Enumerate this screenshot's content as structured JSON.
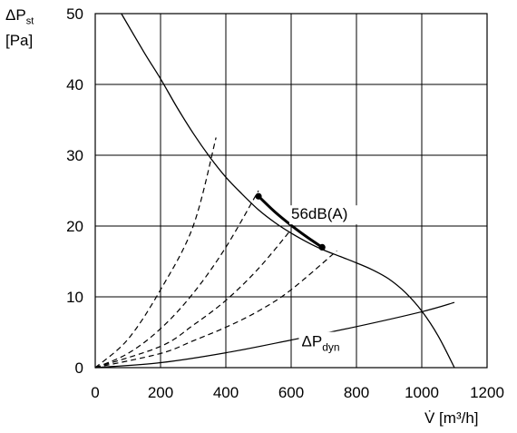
{
  "chart_data": {
    "type": "line",
    "ylabel_main": "ΔP",
    "ylabel_sub": "st",
    "yunit": "[Pa]",
    "xlabel": "V̇ [m³/h]",
    "xlim": [
      0,
      1200
    ],
    "ylim": [
      0,
      50
    ],
    "x_ticks": [
      0,
      200,
      400,
      600,
      800,
      1000,
      1200
    ],
    "y_ticks": [
      0,
      10,
      20,
      30,
      40,
      50
    ],
    "grid": true,
    "series": [
      {
        "style": "solid",
        "x": [
          80,
          150,
          200,
          250,
          300,
          350,
          400,
          450,
          500,
          550,
          600,
          650,
          700,
          750,
          800,
          850,
          900,
          950,
          1000,
          1050,
          1100
        ],
        "y": [
          50,
          44.5,
          40.8,
          36.8,
          33.1,
          29.8,
          26.9,
          24.5,
          22.3,
          20.5,
          19.0,
          17.7,
          16.6,
          15.7,
          14.8,
          13.8,
          12.5,
          10.6,
          8.0,
          4.5,
          0
        ]
      },
      {
        "name": "56dB(A)",
        "style": "bold",
        "x": [
          500,
          550,
          600,
          650,
          695
        ],
        "y": [
          24.2,
          22.0,
          20.1,
          18.4,
          17.0
        ]
      },
      {
        "name": "ΔPdyn",
        "style": "thin",
        "x": [
          0,
          200,
          400,
          600,
          800,
          1000,
          1100
        ],
        "y": [
          0,
          0.7,
          2.1,
          3.9,
          5.8,
          7.9,
          9.2
        ]
      },
      {
        "style": "dashed",
        "x": [
          0,
          100,
          200,
          300,
          370
        ],
        "y": [
          0,
          4,
          11,
          20,
          32.5
        ]
      },
      {
        "style": "dashed",
        "x": [
          0,
          100,
          200,
          300,
          400,
          500
        ],
        "y": [
          0,
          2,
          5.5,
          10.5,
          17,
          25
        ]
      },
      {
        "style": "dashed",
        "x": [
          0,
          200,
          300,
          400,
          500,
          600
        ],
        "y": [
          0,
          3,
          6,
          9.5,
          14,
          19.5
        ]
      },
      {
        "style": "dashed",
        "x": [
          0,
          200,
          300,
          400,
          500,
          600,
          740
        ],
        "y": [
          0,
          2,
          3.8,
          5.7,
          8,
          11,
          16.5
        ]
      }
    ],
    "points": [
      {
        "x": 500,
        "y": 24.2
      },
      {
        "x": 695,
        "y": 17.0
      }
    ],
    "annotations": [
      {
        "text": "56dB(A)",
        "x": 600,
        "y": 21
      },
      {
        "text_main": "ΔP",
        "text_sub": "dyn",
        "x": 632,
        "y": 3
      }
    ]
  }
}
